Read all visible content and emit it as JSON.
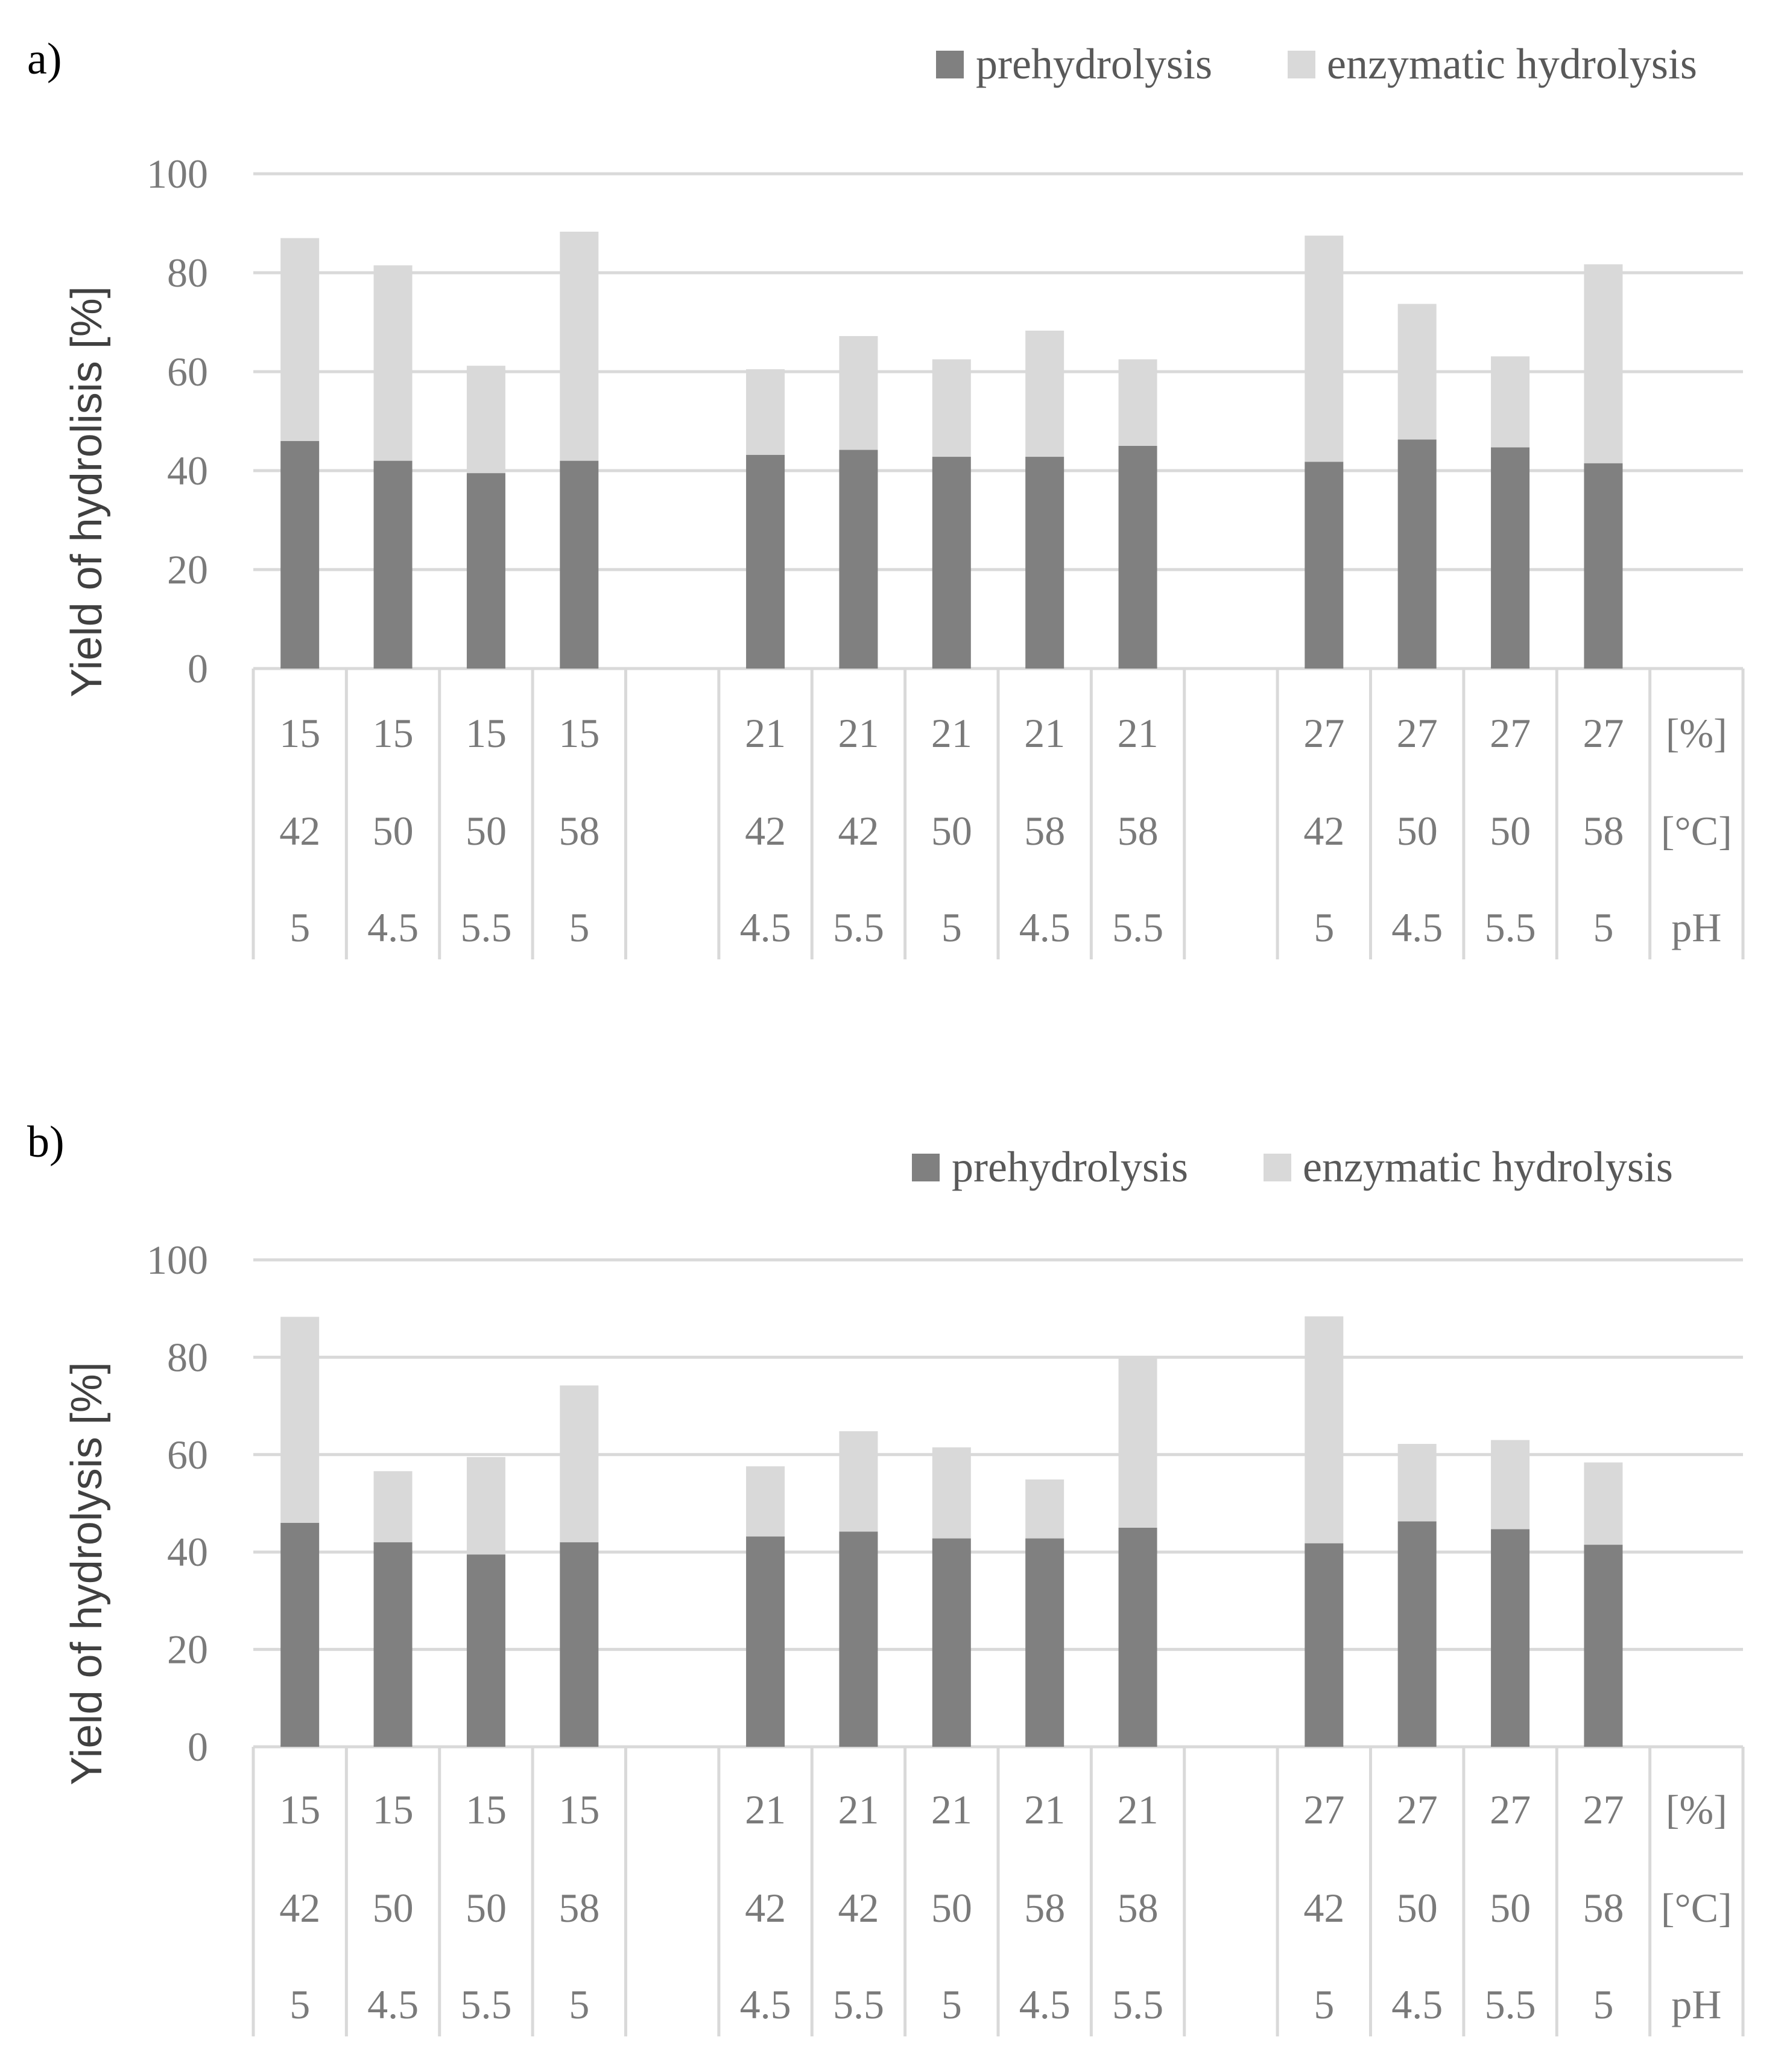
{
  "colors": {
    "prehydrolysis": "#808080",
    "enzymatic": "#d9d9d9",
    "grid": "#d9d9d9",
    "text": "#7a7a7a"
  },
  "chart_data": [
    {
      "type": "bar",
      "stacked": true,
      "panel_label": "a)",
      "ylabel": "Yield of hydrolisis [%]",
      "ylim": [
        0,
        100
      ],
      "yticks": [
        0,
        20,
        40,
        60,
        80,
        100
      ],
      "legend": [
        "prehydrolysis",
        "enzymatic hydrolysis"
      ],
      "legend_position": "top-right",
      "category_rows": [
        [
          "15",
          "15",
          "15",
          "15",
          "",
          "21",
          "21",
          "21",
          "21",
          "21",
          "",
          "27",
          "27",
          "27",
          "27",
          "[%]"
        ],
        [
          "42",
          "50",
          "50",
          "58",
          "",
          "42",
          "42",
          "50",
          "58",
          "58",
          "",
          "42",
          "50",
          "50",
          "58",
          "[°C]"
        ],
        [
          "5",
          "4.5",
          "5.5",
          "5",
          "",
          "4.5",
          "5.5",
          "5",
          "4.5",
          "5.5",
          "",
          "5",
          "4.5",
          "5.5",
          "5",
          "pH"
        ]
      ],
      "series": [
        {
          "name": "prehydrolysis",
          "values": [
            46,
            42,
            39.5,
            42,
            null,
            43.2,
            44.2,
            42.8,
            42.8,
            45,
            null,
            41.8,
            46.3,
            44.7,
            41.5,
            null
          ]
        },
        {
          "name": "enzymatic hydrolysis",
          "values": [
            41,
            39.5,
            21.7,
            46.3,
            null,
            17.3,
            23,
            19.7,
            25.5,
            17.5,
            null,
            45.7,
            27.4,
            18.4,
            40.2,
            null
          ]
        }
      ]
    },
    {
      "type": "bar",
      "stacked": true,
      "panel_label": "b)",
      "ylabel": "Yield of hydrolysis [%]",
      "ylim": [
        0,
        100
      ],
      "yticks": [
        0,
        20,
        40,
        60,
        80,
        100
      ],
      "legend": [
        "prehydrolysis",
        "enzymatic hydrolysis"
      ],
      "legend_position": "top-right",
      "category_rows": [
        [
          "15",
          "15",
          "15",
          "15",
          "",
          "21",
          "21",
          "21",
          "21",
          "21",
          "",
          "27",
          "27",
          "27",
          "27",
          "[%]"
        ],
        [
          "42",
          "50",
          "50",
          "58",
          "",
          "42",
          "42",
          "50",
          "58",
          "58",
          "",
          "42",
          "50",
          "50",
          "58",
          "[°C]"
        ],
        [
          "5",
          "4.5",
          "5.5",
          "5",
          "",
          "4.5",
          "5.5",
          "5",
          "4.5",
          "5.5",
          "",
          "5",
          "4.5",
          "5.5",
          "5",
          "pH"
        ]
      ],
      "series": [
        {
          "name": "prehydrolysis",
          "values": [
            46,
            42,
            39.5,
            42,
            null,
            43.2,
            44.2,
            42.8,
            42.8,
            45,
            null,
            41.8,
            46.3,
            44.7,
            41.5,
            null
          ]
        },
        {
          "name": "enzymatic hydrolysis",
          "values": [
            42.3,
            14.6,
            20,
            32.2,
            null,
            14.4,
            20.6,
            18.7,
            12.1,
            35,
            null,
            46.6,
            15.9,
            18.3,
            16.9,
            null
          ]
        }
      ]
    }
  ]
}
